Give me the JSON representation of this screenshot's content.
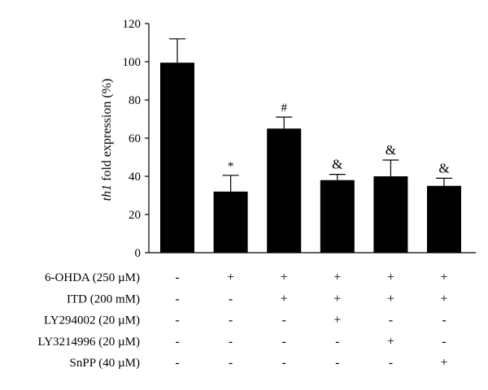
{
  "chart_data": {
    "type": "bar",
    "ylabel_italic": "th1",
    "ylabel_rest": " fold expression (%)",
    "ylim": [
      0,
      120
    ],
    "yticks": [
      0,
      20,
      40,
      60,
      80,
      100,
      120
    ],
    "grid": false,
    "values": [
      99.5,
      32,
      65,
      38,
      40,
      35
    ],
    "errors": [
      12.5,
      8.5,
      6,
      3,
      8.5,
      4
    ],
    "annotations": [
      "",
      "*",
      "#",
      "&",
      "&",
      "&"
    ],
    "bar_color": "#000000",
    "conditions": [
      {
        "label": "6-OHDA (250 µM)",
        "signs": [
          "-",
          "+",
          "+",
          "+",
          "+",
          "+"
        ]
      },
      {
        "label": "ITD (200 mM)",
        "signs": [
          "-",
          "-",
          "+",
          "+",
          "+",
          "+"
        ]
      },
      {
        "label": "LY294002 (20 µM)",
        "signs": [
          "-",
          "-",
          "-",
          "+",
          "-",
          "-"
        ]
      },
      {
        "label": "LY3214996 (20 µM)",
        "signs": [
          "-",
          "-",
          "-",
          "-",
          "+",
          "-"
        ]
      },
      {
        "label": "SnPP (40 µM)",
        "signs": [
          "-",
          "-",
          "-",
          "-",
          "-",
          "+"
        ]
      }
    ]
  }
}
